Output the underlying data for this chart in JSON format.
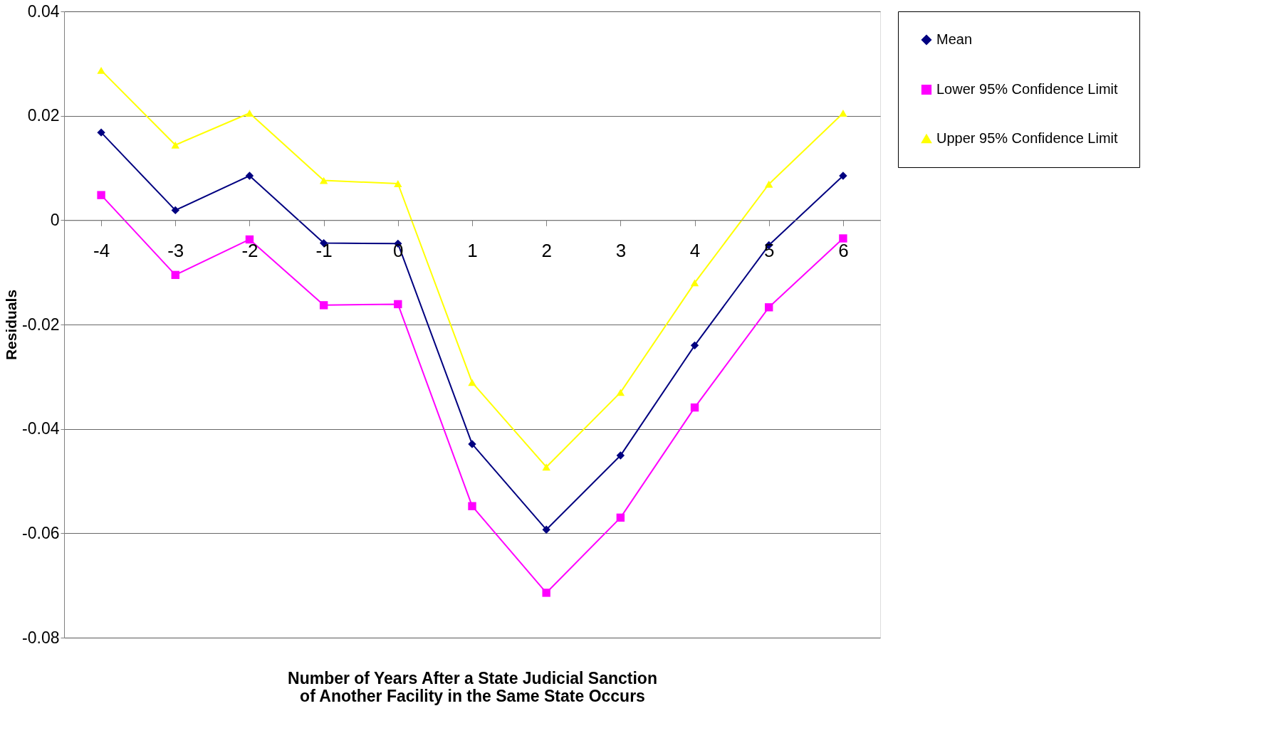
{
  "chart_data": {
    "type": "line",
    "xlabel": "Number of Years After a State Judicial Sanction\nof Another Facility in the Same State Occurs",
    "ylabel": "Residuals",
    "categories": [
      "-4",
      "-3",
      "-2",
      "-1",
      "0",
      "1",
      "2",
      "3",
      "4",
      "5",
      "6"
    ],
    "series": [
      {
        "name": "Mean",
        "color": "#000080",
        "marker": "diamond",
        "values": [
          0.0168,
          0.0019,
          0.0085,
          -0.0044,
          -0.0045,
          -0.0429,
          -0.0593,
          -0.0451,
          -0.024,
          -0.0048,
          0.0085
        ]
      },
      {
        "name": "Lower 95% Confidence Limit",
        "color": "#ff00ff",
        "marker": "square",
        "values": [
          0.0048,
          -0.0105,
          -0.0037,
          -0.0163,
          -0.0161,
          -0.0548,
          -0.0714,
          -0.057,
          -0.0359,
          -0.0167,
          -0.0035
        ]
      },
      {
        "name": "Upper 95% Confidence Limit",
        "color": "#ffff00",
        "marker": "triangle",
        "values": [
          0.0287,
          0.0144,
          0.0205,
          0.0076,
          0.007,
          -0.0311,
          -0.0473,
          -0.033,
          -0.012,
          0.0069,
          0.0205
        ]
      }
    ],
    "ylim": [
      -0.08,
      0.04
    ],
    "yticks": [
      -0.08,
      -0.06,
      -0.04,
      -0.02,
      0,
      0.02,
      0.04
    ],
    "grid": "y",
    "legend": "right"
  }
}
